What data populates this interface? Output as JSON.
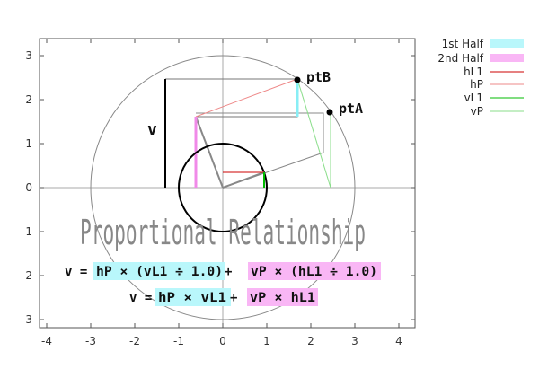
{
  "axes": {
    "x_ticks": [
      "-4",
      "-3",
      "-2",
      "-1",
      "0",
      "1",
      "2",
      "3",
      "4"
    ],
    "y_ticks": [
      "-3",
      "-2",
      "-1",
      "0",
      "1",
      "2",
      "3"
    ]
  },
  "legend": {
    "first_half": "1st Half",
    "second_half": "2nd Half",
    "hL1": "hL1",
    "hP": "hP",
    "vL1": "vL1",
    "vP": "vP"
  },
  "colors": {
    "first_half": "#b9f7fb",
    "second_half": "#f9b6f5",
    "hL1": "#cc0000",
    "hP": "#ee8888",
    "vL1": "#00bb00",
    "vP": "#88dd88"
  },
  "points": {
    "ptA": {
      "label": "ptA",
      "x": 2.44,
      "y": 1.72
    },
    "ptB": {
      "label": "ptB",
      "x": 1.7,
      "y": 2.45
    }
  },
  "v_label": "v",
  "title": "Proportional Relationship",
  "formula1": {
    "p1": "v = ",
    "p2": "hP × (vL1 ÷ 1.0)",
    "p3": " + ",
    "p4": "vP × (hL1 ÷ 1.0)"
  },
  "formula2": {
    "p1": "v = ",
    "p2": "hP × vL1",
    "p3": " + ",
    "p4": "vP × hL1"
  }
}
